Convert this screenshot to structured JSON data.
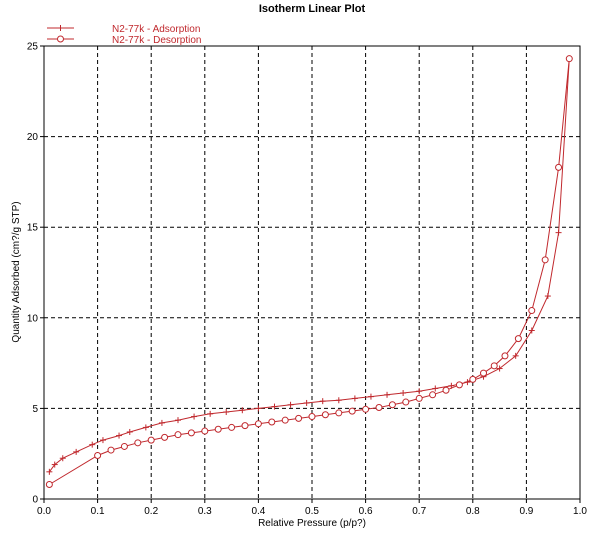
{
  "chart_data": {
    "type": "line",
    "title": "Isotherm Linear Plot",
    "xlabel": "Relative Pressure (p/p?)",
    "ylabel": "Quantity Adsorbed (cm?/g STP)",
    "xlim": [
      0,
      1.0
    ],
    "ylim": [
      0,
      25
    ],
    "x_ticks": [
      0,
      0.1,
      0.2,
      0.3,
      0.4,
      0.5,
      0.6,
      0.7,
      0.8,
      0.9,
      1.0
    ],
    "x_tick_labels": [
      "0.0",
      "0.1",
      "0.2",
      "0.3",
      "0.4",
      "0.5",
      "0.6",
      "0.7",
      "0.8",
      "0.9",
      "1.0"
    ],
    "y_ticks": [
      0,
      5,
      10,
      15,
      20,
      25
    ],
    "y_tick_labels": [
      "0",
      "5",
      "10",
      "15",
      "20",
      "25"
    ],
    "grid": true,
    "legend_position": "top-left",
    "series": [
      {
        "name": "N2-77k - Adsorption",
        "marker": "plus",
        "color": "#c0282d",
        "x": [
          0.01,
          0.02,
          0.035,
          0.06,
          0.09,
          0.11,
          0.14,
          0.16,
          0.19,
          0.22,
          0.25,
          0.28,
          0.31,
          0.34,
          0.37,
          0.4,
          0.43,
          0.46,
          0.49,
          0.52,
          0.55,
          0.58,
          0.61,
          0.64,
          0.67,
          0.7,
          0.73,
          0.76,
          0.79,
          0.82,
          0.85,
          0.88,
          0.91,
          0.94,
          0.96,
          0.98
        ],
        "y": [
          1.5,
          1.9,
          2.25,
          2.6,
          3.0,
          3.25,
          3.5,
          3.7,
          3.95,
          4.2,
          4.35,
          4.55,
          4.7,
          4.8,
          4.9,
          5.0,
          5.1,
          5.2,
          5.3,
          5.4,
          5.45,
          5.55,
          5.65,
          5.75,
          5.85,
          5.95,
          6.1,
          6.25,
          6.45,
          6.75,
          7.2,
          7.9,
          9.3,
          11.2,
          14.7,
          24.3
        ]
      },
      {
        "name": "N2-77k - Desorption",
        "marker": "circle",
        "color": "#c0282d",
        "x": [
          0.01,
          0.1,
          0.125,
          0.15,
          0.175,
          0.2,
          0.225,
          0.25,
          0.275,
          0.3,
          0.325,
          0.35,
          0.375,
          0.4,
          0.425,
          0.45,
          0.475,
          0.5,
          0.525,
          0.55,
          0.575,
          0.6,
          0.625,
          0.65,
          0.675,
          0.7,
          0.725,
          0.75,
          0.775,
          0.8,
          0.82,
          0.84,
          0.86,
          0.885,
          0.91,
          0.935,
          0.96,
          0.98
        ],
        "y": [
          0.8,
          2.4,
          2.7,
          2.9,
          3.1,
          3.25,
          3.4,
          3.55,
          3.65,
          3.75,
          3.85,
          3.95,
          4.05,
          4.15,
          4.25,
          4.35,
          4.45,
          4.55,
          4.65,
          4.75,
          4.85,
          4.95,
          5.05,
          5.2,
          5.35,
          5.55,
          5.75,
          6.0,
          6.3,
          6.6,
          6.95,
          7.35,
          7.9,
          8.85,
          10.4,
          13.2,
          18.3,
          24.3
        ]
      }
    ]
  }
}
